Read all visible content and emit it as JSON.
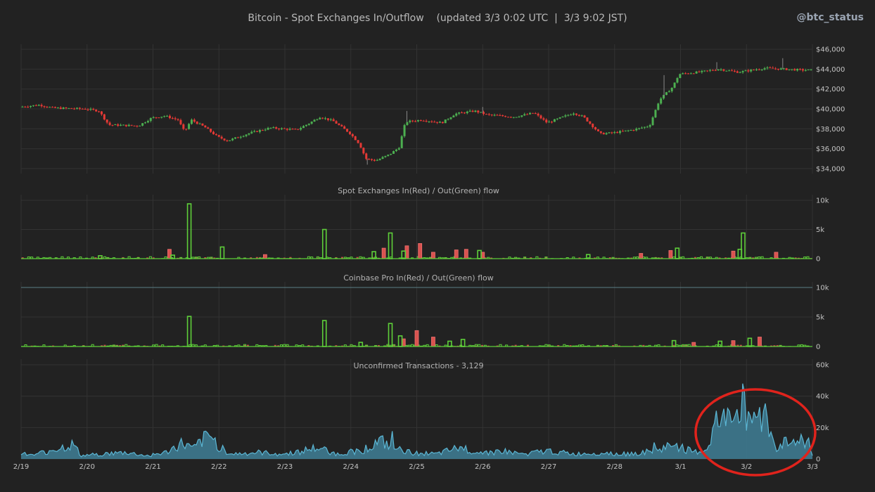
{
  "header": {
    "title": "Bitcoin - Spot Exchanges In/Outflow    (updated 3/3 0:02 UTC  |  3/3 9:02 JST)",
    "handle": "@btc_status"
  },
  "colors": {
    "background": "#222222",
    "up": "#4caf50",
    "down": "#e53935",
    "inflow": "#d9534f",
    "outflow": "#5ecf3a",
    "unconfirmed_line": "#5bb6d4",
    "unconfirmed_fill": "#3f7f96",
    "highlight_ellipse": "#e0231c"
  },
  "chart_data": [
    {
      "id": "price",
      "type": "candlestick",
      "title": "",
      "ylim": [
        33500,
        46500
      ],
      "yticks": [
        "$46,000",
        "$44,000",
        "$42,000",
        "$40,000",
        "$38,000",
        "$36,000",
        "$34,000"
      ],
      "ytick_values": [
        46000,
        44000,
        42000,
        40000,
        38000,
        36000,
        34000
      ],
      "x_days": [
        0,
        12
      ],
      "xticks": [
        "2/19",
        "2/20",
        "2/21",
        "2/22",
        "2/23",
        "2/24",
        "2/25",
        "2/26",
        "2/27",
        "2/28",
        "3/1",
        "3/2",
        "3/3"
      ],
      "close_path": [
        [
          0,
          40200
        ],
        [
          0.3,
          40400
        ],
        [
          0.5,
          40100
        ],
        [
          1.0,
          40000
        ],
        [
          1.2,
          39800
        ],
        [
          1.35,
          38400
        ],
        [
          1.8,
          38300
        ],
        [
          2.0,
          39100
        ],
        [
          2.2,
          39300
        ],
        [
          2.4,
          38900
        ],
        [
          2.5,
          37700
        ],
        [
          2.6,
          38900
        ],
        [
          2.8,
          38200
        ],
        [
          3.0,
          37200
        ],
        [
          3.15,
          36800
        ],
        [
          3.5,
          37600
        ],
        [
          3.8,
          38100
        ],
        [
          4.2,
          37900
        ],
        [
          4.4,
          38600
        ],
        [
          4.55,
          39200
        ],
        [
          4.75,
          38800
        ],
        [
          5.0,
          37600
        ],
        [
          5.15,
          36500
        ],
        [
          5.25,
          35000
        ],
        [
          5.4,
          34800
        ],
        [
          5.6,
          35400
        ],
        [
          5.75,
          36100
        ],
        [
          5.85,
          38700
        ],
        [
          6.1,
          38900
        ],
        [
          6.4,
          38600
        ],
        [
          6.6,
          39500
        ],
        [
          6.9,
          39800
        ],
        [
          7.1,
          39400
        ],
        [
          7.5,
          39200
        ],
        [
          7.8,
          39600
        ],
        [
          8.0,
          38600
        ],
        [
          8.4,
          39600
        ],
        [
          8.55,
          39200
        ],
        [
          8.8,
          37500
        ],
        [
          9.0,
          37600
        ],
        [
          9.3,
          37900
        ],
        [
          9.55,
          38300
        ],
        [
          9.7,
          40900
        ],
        [
          9.9,
          42200
        ],
        [
          10.0,
          43500
        ],
        [
          10.3,
          43700
        ],
        [
          10.6,
          44000
        ],
        [
          10.9,
          43700
        ],
        [
          11.3,
          44100
        ],
        [
          11.6,
          44000
        ],
        [
          11.9,
          43900
        ],
        [
          12.0,
          43900
        ]
      ],
      "spikes": [
        [
          5.25,
          34400
        ],
        [
          5.85,
          39800
        ],
        [
          9.75,
          43400
        ],
        [
          10.55,
          44700
        ],
        [
          11.55,
          45100
        ],
        [
          7.0,
          40200
        ]
      ]
    },
    {
      "id": "spot",
      "type": "bar",
      "title": "Spot Exchanges  In(Red) / Out(Green) flow",
      "ylim": [
        0,
        10000
      ],
      "yticks": [
        "10k",
        "5k",
        "0"
      ],
      "ytick_values": [
        10000,
        5000,
        0
      ],
      "outflow_spikes": [
        [
          2.55,
          9400
        ],
        [
          4.6,
          5000
        ],
        [
          5.6,
          4400
        ],
        [
          10.95,
          4400
        ],
        [
          3.05,
          2000
        ],
        [
          5.35,
          1200
        ],
        [
          5.8,
          1300
        ],
        [
          6.95,
          1400
        ],
        [
          9.95,
          1800
        ],
        [
          10.9,
          1600
        ],
        [
          1.2,
          500
        ],
        [
          2.3,
          600
        ],
        [
          8.6,
          700
        ]
      ],
      "inflow_spikes": [
        [
          2.25,
          1600
        ],
        [
          5.5,
          1800
        ],
        [
          5.85,
          2200
        ],
        [
          6.05,
          2600
        ],
        [
          6.6,
          1500
        ],
        [
          6.75,
          1600
        ],
        [
          7.0,
          1100
        ],
        [
          9.4,
          900
        ],
        [
          9.85,
          1400
        ],
        [
          10.8,
          1300
        ],
        [
          11.45,
          1100
        ],
        [
          3.7,
          700
        ],
        [
          6.25,
          1100
        ]
      ]
    },
    {
      "id": "coinbase",
      "type": "bar",
      "title": "Coinbase Pro  In(Red) / Out(Green) flow",
      "ylim": [
        0,
        10000
      ],
      "yticks": [
        "10k",
        "5k",
        "0"
      ],
      "ytick_values": [
        10000,
        5000,
        0
      ],
      "outflow_spikes": [
        [
          2.55,
          5100
        ],
        [
          4.6,
          4400
        ],
        [
          5.6,
          3900
        ],
        [
          5.15,
          700
        ],
        [
          5.75,
          1800
        ],
        [
          6.5,
          900
        ],
        [
          6.7,
          1200
        ],
        [
          9.9,
          1000
        ],
        [
          10.6,
          900
        ],
        [
          11.05,
          1400
        ]
      ],
      "inflow_spikes": [
        [
          6.0,
          2700
        ],
        [
          5.8,
          1300
        ],
        [
          6.25,
          1600
        ],
        [
          10.2,
          700
        ],
        [
          10.8,
          1000
        ],
        [
          11.2,
          1600
        ]
      ]
    },
    {
      "id": "unconfirmed",
      "type": "area",
      "title": "Unconfirmed Transactions  -  3,129",
      "ylim": [
        0,
        60000
      ],
      "yticks": [
        "60k",
        "40k",
        "20k",
        "0"
      ],
      "ytick_values": [
        60000,
        40000,
        20000,
        0
      ],
      "area_path": [
        [
          0,
          2000
        ],
        [
          0.05,
          5000
        ],
        [
          0.15,
          2000
        ],
        [
          0.5,
          6000
        ],
        [
          0.8,
          9000
        ],
        [
          0.9,
          2000
        ],
        [
          1.2,
          3000
        ],
        [
          1.6,
          4000
        ],
        [
          1.9,
          2000
        ],
        [
          2.2,
          4000
        ],
        [
          2.45,
          10000
        ],
        [
          2.6,
          6000
        ],
        [
          2.85,
          15000
        ],
        [
          3.0,
          8000
        ],
        [
          3.2,
          3000
        ],
        [
          3.6,
          4000
        ],
        [
          4.0,
          3000
        ],
        [
          4.5,
          7000
        ],
        [
          4.8,
          3000
        ],
        [
          5.2,
          6000
        ],
        [
          5.45,
          11000
        ],
        [
          5.7,
          6000
        ],
        [
          5.9,
          4000
        ],
        [
          6.3,
          3000
        ],
        [
          6.65,
          7000
        ],
        [
          7.0,
          4000
        ],
        [
          7.3,
          5000
        ],
        [
          7.6,
          3000
        ],
        [
          8.0,
          5000
        ],
        [
          8.4,
          3000
        ],
        [
          8.8,
          4000
        ],
        [
          9.2,
          3000
        ],
        [
          9.6,
          5000
        ],
        [
          9.9,
          9000
        ],
        [
          10.2,
          4000
        ],
        [
          10.4,
          6000
        ],
        [
          10.55,
          24000
        ],
        [
          10.62,
          19000
        ],
        [
          10.7,
          30000
        ],
        [
          10.78,
          35000
        ],
        [
          10.85,
          28000
        ],
        [
          10.92,
          35000
        ],
        [
          11.0,
          31000
        ],
        [
          11.1,
          26000
        ],
        [
          11.18,
          30000
        ],
        [
          11.28,
          28000
        ],
        [
          11.38,
          15000
        ],
        [
          11.45,
          6000
        ],
        [
          11.55,
          12000
        ],
        [
          11.65,
          8000
        ],
        [
          11.8,
          14000
        ],
        [
          11.9,
          9000
        ],
        [
          11.95,
          13000
        ],
        [
          12.0,
          3000
        ]
      ]
    }
  ]
}
